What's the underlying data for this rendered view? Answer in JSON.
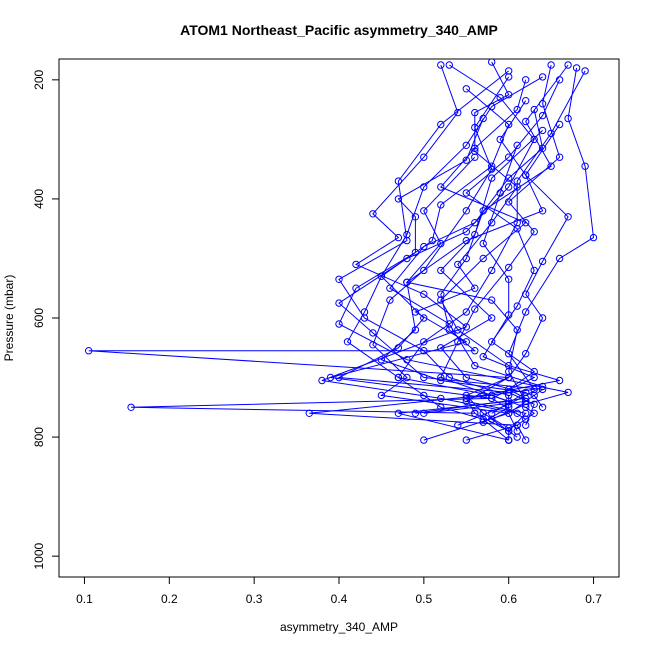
{
  "chart_data": {
    "type": "line",
    "title": "ATOM1 Northeast_Pacific asymmetry_340_AMP",
    "xlabel": "asymmetry_340_AMP",
    "ylabel": "Pressure (mbar)",
    "xlim": [
      0.07,
      0.73
    ],
    "ylim": [
      1035,
      165
    ],
    "x_ticks": [
      0.1,
      0.2,
      0.3,
      0.4,
      0.5,
      0.6,
      0.7
    ],
    "x_tick_labels": [
      "0.1",
      "0.2",
      "0.3",
      "0.4",
      "0.5",
      "0.6",
      "0.7"
    ],
    "y_ticks": [
      200,
      400,
      600,
      800,
      1000
    ],
    "y_tick_labels": [
      "200",
      "400",
      "600",
      "800",
      "1000"
    ],
    "grid": false,
    "line_color": "#0000ff",
    "series": [
      {
        "points": [
          [
            0.67,
            175
          ],
          [
            0.62,
            270
          ],
          [
            0.65,
            345
          ],
          [
            0.57,
            420
          ],
          [
            0.55,
            500
          ],
          [
            0.52,
            560
          ],
          [
            0.53,
            620
          ],
          [
            0.56,
            655
          ],
          [
            0.105,
            655
          ],
          [
            0.6,
            700
          ],
          [
            0.55,
            730
          ],
          [
            0.57,
            760
          ],
          [
            0.6,
            785
          ],
          [
            0.6,
            805
          ]
        ]
      },
      {
        "points": [
          [
            0.69,
            185
          ],
          [
            0.65,
            290
          ],
          [
            0.61,
            370
          ],
          [
            0.61,
            440
          ],
          [
            0.58,
            520
          ],
          [
            0.55,
            590
          ],
          [
            0.5,
            640
          ],
          [
            0.47,
            700
          ],
          [
            0.58,
            730
          ],
          [
            0.62,
            750
          ],
          [
            0.63,
            760
          ],
          [
            0.61,
            780
          ],
          [
            0.55,
            805
          ]
        ]
      },
      {
        "points": [
          [
            0.64,
            195
          ],
          [
            0.58,
            245
          ],
          [
            0.55,
            310
          ],
          [
            0.5,
            380
          ],
          [
            0.48,
            460
          ],
          [
            0.45,
            530
          ],
          [
            0.43,
            590
          ],
          [
            0.41,
            640
          ],
          [
            0.47,
            700
          ],
          [
            0.5,
            730
          ],
          [
            0.52,
            750
          ],
          [
            0.57,
            770
          ],
          [
            0.6,
            805
          ]
        ]
      },
      {
        "points": [
          [
            0.53,
            175
          ],
          [
            0.59,
            230
          ],
          [
            0.63,
            300
          ],
          [
            0.6,
            380
          ],
          [
            0.55,
            455
          ],
          [
            0.48,
            500
          ],
          [
            0.4,
            575
          ],
          [
            0.44,
            625
          ],
          [
            0.5,
            700
          ],
          [
            0.64,
            720
          ],
          [
            0.62,
            740
          ],
          [
            0.6,
            760
          ],
          [
            0.5,
            805
          ]
        ]
      },
      {
        "points": [
          [
            0.58,
            170
          ],
          [
            0.6,
            225
          ],
          [
            0.56,
            255
          ],
          [
            0.56,
            320
          ],
          [
            0.61,
            380
          ],
          [
            0.58,
            440
          ],
          [
            0.54,
            510
          ],
          [
            0.56,
            550
          ],
          [
            0.49,
            590
          ],
          [
            0.55,
            640
          ],
          [
            0.39,
            700
          ],
          [
            0.58,
            735
          ],
          [
            0.155,
            750
          ],
          [
            0.56,
            760
          ],
          [
            0.6,
            790
          ]
        ]
      },
      {
        "points": [
          [
            0.55,
            215
          ],
          [
            0.6,
            275
          ],
          [
            0.58,
            345
          ],
          [
            0.52,
            410
          ],
          [
            0.51,
            470
          ],
          [
            0.45,
            530
          ],
          [
            0.5,
            600
          ],
          [
            0.47,
            650
          ],
          [
            0.4,
            700
          ],
          [
            0.6,
            725
          ],
          [
            0.63,
            745
          ],
          [
            0.62,
            780
          ]
        ]
      },
      {
        "points": [
          [
            0.62,
            200
          ],
          [
            0.61,
            250
          ],
          [
            0.56,
            315
          ],
          [
            0.52,
            380
          ],
          [
            0.62,
            440
          ],
          [
            0.57,
            500
          ],
          [
            0.52,
            570
          ],
          [
            0.54,
            620
          ],
          [
            0.6,
            680
          ],
          [
            0.66,
            705
          ],
          [
            0.57,
            730
          ],
          [
            0.365,
            760
          ],
          [
            0.61,
            780
          ],
          [
            0.62,
            805
          ]
        ]
      },
      {
        "points": [
          [
            0.65,
            175
          ],
          [
            0.64,
            240
          ],
          [
            0.66,
            330
          ],
          [
            0.6,
            405
          ],
          [
            0.63,
            455
          ],
          [
            0.6,
            515
          ],
          [
            0.56,
            585
          ],
          [
            0.54,
            640
          ],
          [
            0.52,
            700
          ],
          [
            0.6,
            740
          ],
          [
            0.47,
            760
          ],
          [
            0.6,
            805
          ]
        ]
      },
      {
        "points": [
          [
            0.6,
            185
          ],
          [
            0.52,
            275
          ],
          [
            0.47,
            370
          ],
          [
            0.48,
            470
          ],
          [
            0.4,
            535
          ],
          [
            0.43,
            600
          ],
          [
            0.5,
            655
          ],
          [
            0.53,
            700
          ],
          [
            0.6,
            730
          ],
          [
            0.6,
            750
          ],
          [
            0.57,
            775
          ]
        ]
      },
      {
        "points": [
          [
            0.66,
            200
          ],
          [
            0.64,
            260
          ],
          [
            0.6,
            330
          ],
          [
            0.55,
            390
          ],
          [
            0.61,
            450
          ],
          [
            0.63,
            520
          ],
          [
            0.61,
            580
          ],
          [
            0.58,
            640
          ],
          [
            0.63,
            690
          ],
          [
            0.6,
            720
          ],
          [
            0.62,
            735
          ],
          [
            0.49,
            760
          ]
        ]
      },
      {
        "points": [
          [
            0.62,
            235
          ],
          [
            0.59,
            300
          ],
          [
            0.62,
            360
          ],
          [
            0.67,
            430
          ],
          [
            0.64,
            505
          ],
          [
            0.62,
            560
          ],
          [
            0.64,
            600
          ],
          [
            0.62,
            660
          ],
          [
            0.6,
            700
          ],
          [
            0.55,
            740
          ],
          [
            0.62,
            760
          ],
          [
            0.6,
            790
          ]
        ]
      },
      {
        "points": [
          [
            0.57,
            265
          ],
          [
            0.55,
            335
          ],
          [
            0.47,
            400
          ],
          [
            0.49,
            430
          ],
          [
            0.49,
            490
          ],
          [
            0.42,
            550
          ],
          [
            0.4,
            610
          ],
          [
            0.48,
            670
          ],
          [
            0.67,
            725
          ],
          [
            0.62,
            745
          ],
          [
            0.58,
            770
          ],
          [
            0.61,
            800
          ]
        ]
      },
      {
        "points": [
          [
            0.68,
            180
          ],
          [
            0.67,
            265
          ],
          [
            0.69,
            345
          ],
          [
            0.7,
            465
          ],
          [
            0.66,
            500
          ],
          [
            0.62,
            590
          ],
          [
            0.6,
            660
          ],
          [
            0.63,
            720
          ],
          [
            0.55,
            735
          ],
          [
            0.56,
            760
          ]
        ]
      },
      {
        "points": [
          [
            0.6,
            195
          ],
          [
            0.56,
            280
          ],
          [
            0.58,
            350
          ],
          [
            0.55,
            420
          ],
          [
            0.5,
            520
          ],
          [
            0.46,
            570
          ],
          [
            0.44,
            645
          ],
          [
            0.48,
            700
          ],
          [
            0.45,
            730
          ],
          [
            0.6,
            760
          ],
          [
            0.61,
            790
          ]
        ]
      },
      {
        "points": [
          [
            0.52,
            175
          ],
          [
            0.54,
            255
          ],
          [
            0.5,
            330
          ],
          [
            0.44,
            425
          ],
          [
            0.47,
            465
          ],
          [
            0.42,
            510
          ],
          [
            0.5,
            560
          ],
          [
            0.55,
            615
          ],
          [
            0.38,
            705
          ],
          [
            0.52,
            735
          ],
          [
            0.61,
            760
          ]
        ]
      },
      {
        "points": [
          [
            0.63,
            250
          ],
          [
            0.64,
            315
          ],
          [
            0.6,
            365
          ],
          [
            0.56,
            440
          ],
          [
            0.5,
            480
          ],
          [
            0.46,
            550
          ],
          [
            0.53,
            610
          ],
          [
            0.56,
            680
          ],
          [
            0.64,
            715
          ],
          [
            0.6,
            745
          ],
          [
            0.54,
            780
          ]
        ]
      },
      {
        "points": [
          [
            0.56,
            330
          ],
          [
            0.5,
            420
          ],
          [
            0.52,
            475
          ],
          [
            0.48,
            540
          ],
          [
            0.58,
            570
          ],
          [
            0.61,
            620
          ],
          [
            0.6,
            690
          ],
          [
            0.62,
            740
          ],
          [
            0.5,
            760
          ]
        ]
      },
      {
        "points": [
          [
            0.66,
            275
          ],
          [
            0.62,
            360
          ],
          [
            0.64,
            420
          ],
          [
            0.55,
            470
          ],
          [
            0.48,
            540
          ],
          [
            0.49,
            620
          ],
          [
            0.45,
            670
          ],
          [
            0.52,
            705
          ],
          [
            0.62,
            725
          ],
          [
            0.58,
            760
          ]
        ]
      },
      {
        "points": [
          [
            0.64,
            285
          ],
          [
            0.58,
            365
          ],
          [
            0.56,
            460
          ],
          [
            0.52,
            520
          ],
          [
            0.58,
            600
          ],
          [
            0.52,
            650
          ],
          [
            0.55,
            700
          ],
          [
            0.63,
            730
          ],
          [
            0.64,
            750
          ]
        ]
      },
      {
        "points": [
          [
            0.61,
            310
          ],
          [
            0.59,
            390
          ],
          [
            0.57,
            475
          ],
          [
            0.6,
            535
          ],
          [
            0.6,
            595
          ],
          [
            0.57,
            665
          ],
          [
            0.63,
            700
          ],
          [
            0.58,
            735
          ],
          [
            0.62,
            770
          ]
        ]
      }
    ]
  }
}
